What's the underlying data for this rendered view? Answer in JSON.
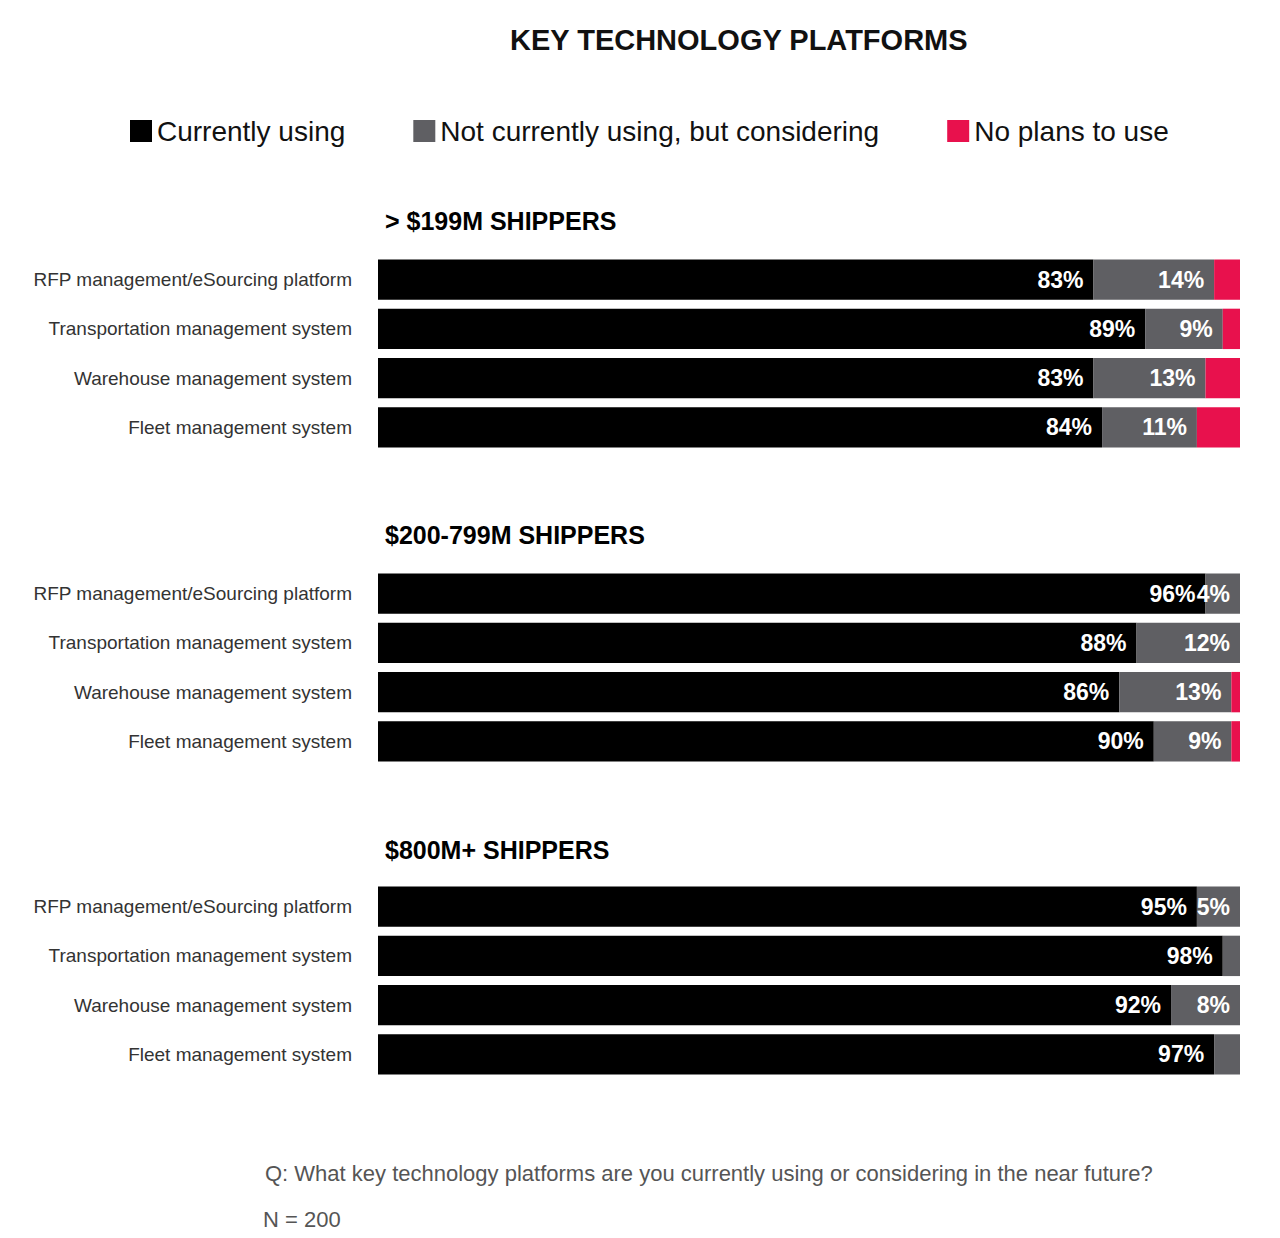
{
  "title": "KEY TECHNOLOGY PLATFORMS",
  "legend": "top",
  "annotations": [
    "Q: What key technology platforms are you currently using or considering in the near future?",
    "N = 200"
  ],
  "chart_data": [
    {
      "type": "bar",
      "title": "> $199M SHIPPERS",
      "orientation": "horizontal",
      "stacked": true,
      "data_labels": true,
      "grid": false,
      "tick_labels": "y",
      "xlim": [
        0,
        100
      ],
      "categories": [
        "RFP management/eSourcing platform",
        "Transportation management system",
        "Warehouse management system",
        "Fleet management system"
      ],
      "series": [
        {
          "name": "Currently using",
          "color": "#000000",
          "values": [
            83,
            89,
            83,
            84
          ],
          "value_labels": [
            "83%",
            "89%",
            "83%",
            "84%"
          ]
        },
        {
          "name": "Not currently using, but considering",
          "color": "#5f5f63",
          "values": [
            14,
            9,
            13,
            11
          ],
          "value_labels": [
            "14%",
            "9%",
            "13%",
            "11%"
          ]
        },
        {
          "name": "No plans to use",
          "color": "#e8114d",
          "values": [
            3,
            2,
            4,
            5
          ],
          "data_labels": false
        }
      ]
    },
    {
      "type": "bar",
      "title": "$200-799M SHIPPERS",
      "orientation": "horizontal",
      "stacked": true,
      "data_labels": true,
      "grid": false,
      "tick_labels": "y",
      "xlim": [
        0,
        100
      ],
      "categories": [
        "RFP management/eSourcing platform",
        "Transportation management system",
        "Warehouse management system",
        "Fleet management system"
      ],
      "series": [
        {
          "name": "Currently using",
          "color": "#000000",
          "values": [
            96,
            88,
            86,
            90
          ],
          "value_labels": [
            "96%",
            "88%",
            "86%",
            "90%"
          ]
        },
        {
          "name": "Not currently using, but considering",
          "color": "#5f5f63",
          "values": [
            4,
            12,
            13,
            9
          ],
          "value_labels": [
            "4%",
            "12%",
            "13%",
            "9%"
          ]
        },
        {
          "name": "No plans to use",
          "color": "#e8114d",
          "values": [
            0,
            0,
            1,
            1
          ],
          "data_labels": false
        }
      ]
    },
    {
      "type": "bar",
      "title": "$800M+ SHIPPERS",
      "orientation": "horizontal",
      "stacked": true,
      "data_labels": true,
      "grid": false,
      "tick_labels": "y",
      "xlim": [
        0,
        100
      ],
      "categories": [
        "RFP management/eSourcing platform",
        "Transportation management system",
        "Warehouse management system",
        "Fleet management system"
      ],
      "series": [
        {
          "name": "Currently using",
          "color": "#000000",
          "values": [
            95,
            98,
            92,
            97
          ],
          "value_labels": [
            "95%",
            "98%",
            "92%",
            "97%"
          ]
        },
        {
          "name": "Not currently using, but considering",
          "color": "#5f5f63",
          "values": [
            5,
            2,
            8,
            3
          ],
          "value_labels": [
            "5%",
            null,
            "8%",
            null
          ]
        },
        {
          "name": "No plans to use",
          "color": "#e8114d",
          "values": [
            0,
            0,
            0,
            0
          ],
          "data_labels": false
        }
      ]
    }
  ]
}
